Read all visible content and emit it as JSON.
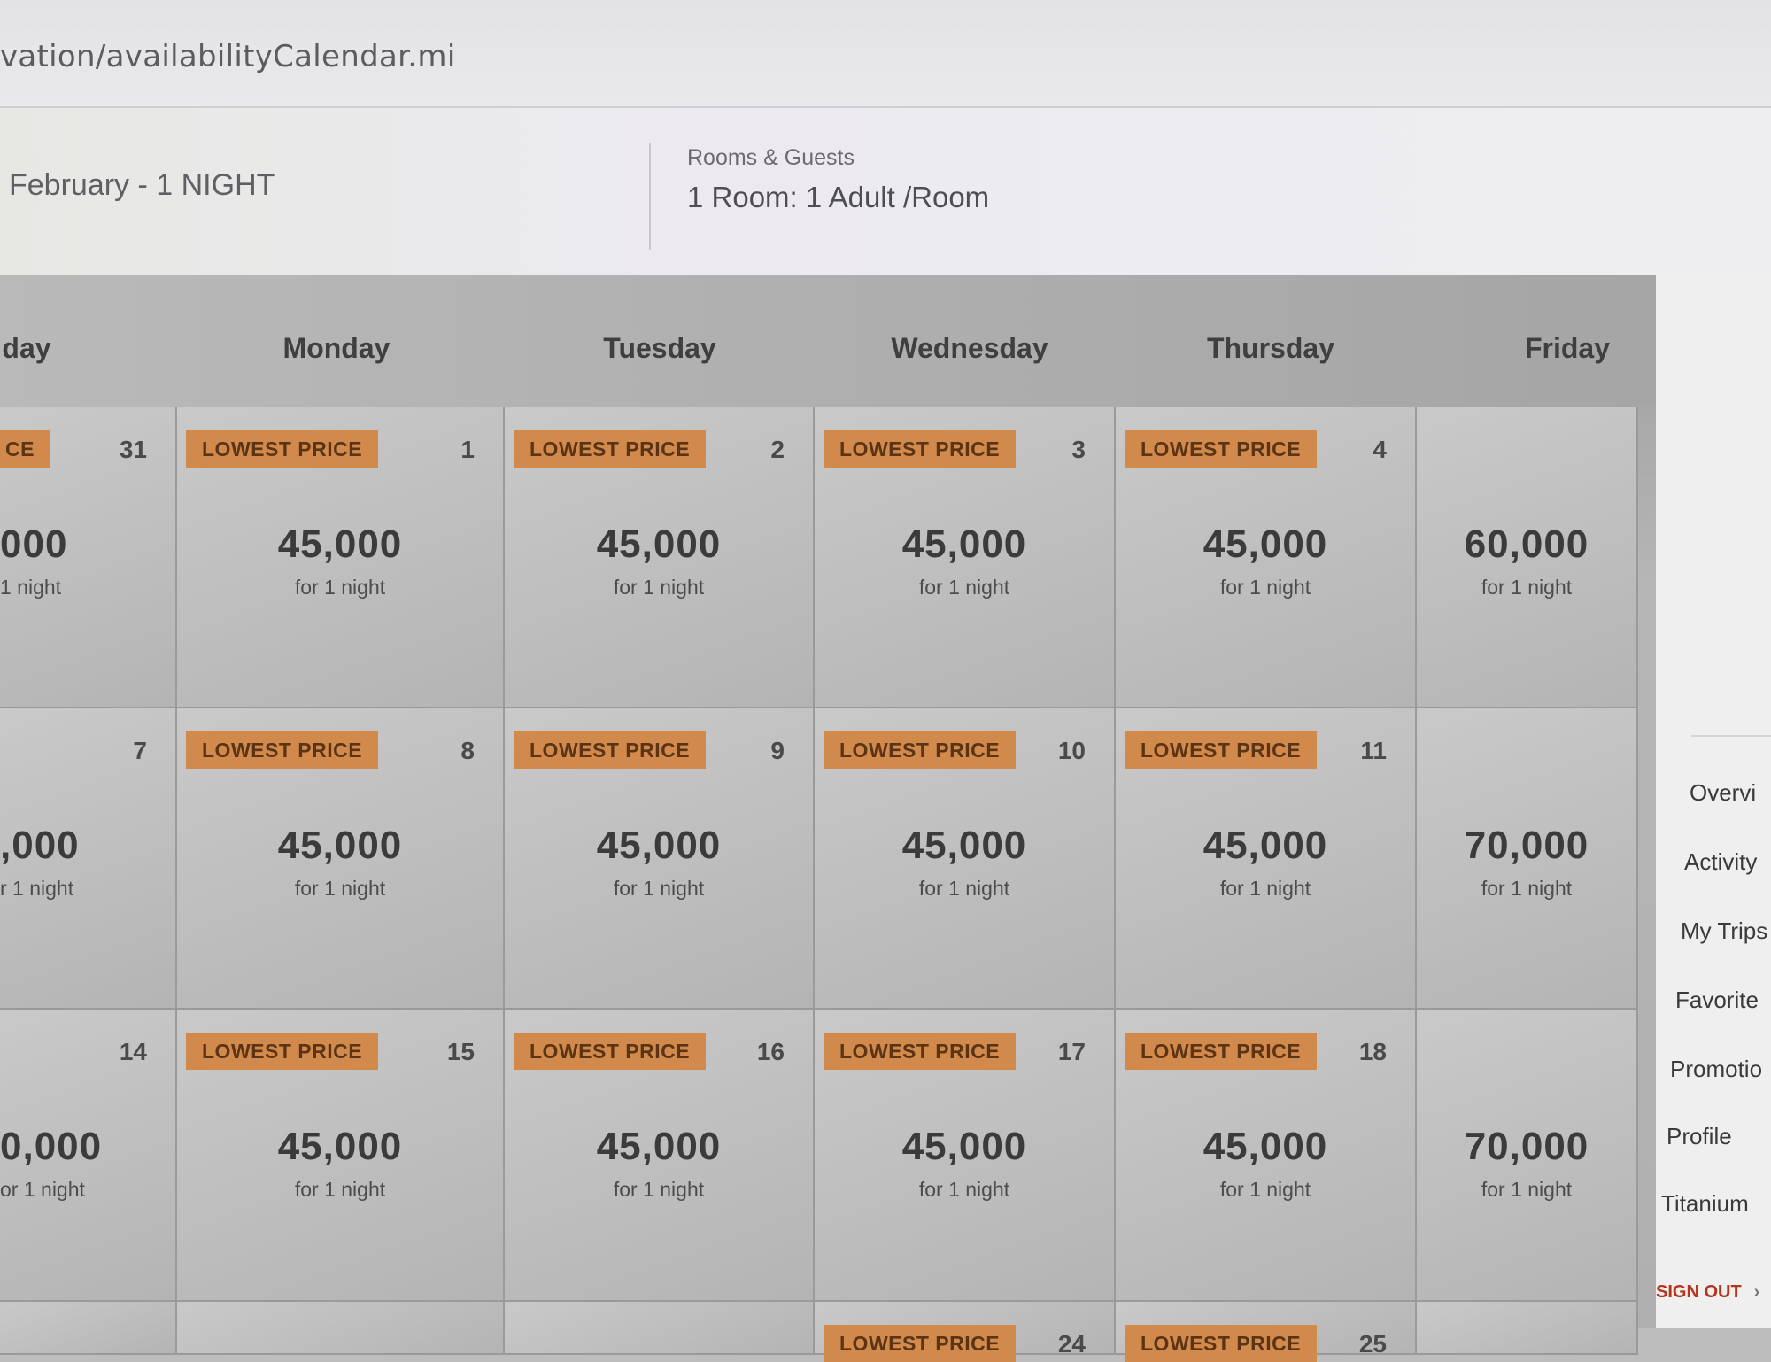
{
  "browser": {
    "url": "vation/availabilityCalendar.mi"
  },
  "search": {
    "dates": "February - 1 NIGHT",
    "rooms_label": "Rooms & Guests",
    "rooms_value": "1 Room: 1 Adult /Room"
  },
  "calendar": {
    "days": [
      "day",
      "Monday",
      "Tuesday",
      "Wednesday",
      "Thursday",
      "Friday"
    ],
    "badge": "LOWEST PRICE",
    "night": "for 1 night",
    "weeks": [
      [
        {
          "num": "31",
          "badge": "CE",
          "price": "000",
          "night": "1 night"
        },
        {
          "num": "1",
          "badge": "LOWEST PRICE",
          "price": "45,000",
          "night": "for 1 night"
        },
        {
          "num": "2",
          "badge": "LOWEST PRICE",
          "price": "45,000",
          "night": "for 1 night"
        },
        {
          "num": "3",
          "badge": "LOWEST PRICE",
          "price": "45,000",
          "night": "for 1 night"
        },
        {
          "num": "4",
          "badge": "LOWEST PRICE",
          "price": "45,000",
          "night": "for 1 night"
        },
        {
          "num": "",
          "badge": "",
          "price": "60,000",
          "night": "for 1 night"
        }
      ],
      [
        {
          "num": "7",
          "badge": "",
          "price": ",000",
          "night": "r 1 night"
        },
        {
          "num": "8",
          "badge": "LOWEST PRICE",
          "price": "45,000",
          "night": "for 1 night"
        },
        {
          "num": "9",
          "badge": "LOWEST PRICE",
          "price": "45,000",
          "night": "for 1 night"
        },
        {
          "num": "10",
          "badge": "LOWEST PRICE",
          "price": "45,000",
          "night": "for 1 night"
        },
        {
          "num": "11",
          "badge": "LOWEST PRICE",
          "price": "45,000",
          "night": "for 1 night"
        },
        {
          "num": "",
          "badge": "",
          "price": "70,000",
          "night": "for 1 night"
        }
      ],
      [
        {
          "num": "14",
          "badge": "",
          "price": "0,000",
          "night": "or 1 night"
        },
        {
          "num": "15",
          "badge": "LOWEST PRICE",
          "price": "45,000",
          "night": "for 1 night"
        },
        {
          "num": "16",
          "badge": "LOWEST PRICE",
          "price": "45,000",
          "night": "for 1 night"
        },
        {
          "num": "17",
          "badge": "LOWEST PRICE",
          "price": "45,000",
          "night": "for 1 night"
        },
        {
          "num": "18",
          "badge": "LOWEST PRICE",
          "price": "45,000",
          "night": "for 1 night"
        },
        {
          "num": "",
          "badge": "",
          "price": "70,000",
          "night": "for 1 night"
        }
      ],
      [
        {
          "num": "",
          "badge": "",
          "price": "",
          "night": ""
        },
        {
          "num": "",
          "badge": "",
          "price": "",
          "night": ""
        },
        {
          "num": "",
          "badge": "",
          "price": "",
          "night": ""
        },
        {
          "num": "24",
          "badge": "LOWEST PRICE",
          "price": "",
          "night": ""
        },
        {
          "num": "25",
          "badge": "LOWEST PRICE",
          "price": "",
          "night": ""
        },
        {
          "num": "",
          "badge": "",
          "price": "",
          "night": ""
        }
      ]
    ]
  },
  "sidebar": {
    "items": [
      "Overvi",
      "Activity",
      "My Trips",
      "Favorite",
      "Promotio",
      "Profile",
      "Titanium"
    ],
    "sign_out": "SIGN OUT"
  }
}
